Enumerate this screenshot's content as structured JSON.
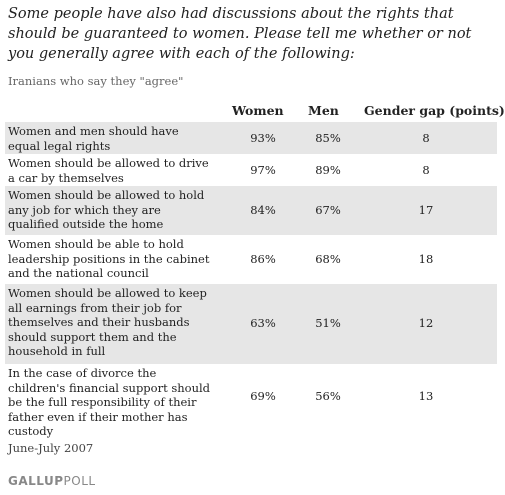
{
  "chart_data": {
    "type": "table",
    "title": "Some people have also had discussions about the rights that should be guaranteed to women. Please tell me whether or not you generally agree with each of the following:",
    "subtitle": "Iranians who say they \"agree\"",
    "columns": [
      "Women",
      "Men",
      "Gender gap (points)"
    ],
    "rows": [
      {
        "label": "Women and men should have equal legal rights",
        "women": "93%",
        "men": "85%",
        "gap": "8"
      },
      {
        "label": "Women should be allowed to drive a car by themselves",
        "women": "97%",
        "men": "89%",
        "gap": "8"
      },
      {
        "label": "Women should be allowed to hold any job for which they are qualified outside the home",
        "women": "84%",
        "men": "67%",
        "gap": "17"
      },
      {
        "label": "Women should be able to hold leadership positions in the cabinet and the national council",
        "women": "86%",
        "men": "68%",
        "gap": "18"
      },
      {
        "label": "Women should be allowed to keep all earnings from their job for themselves and their husbands should support them and the household in full",
        "women": "63%",
        "men": "51%",
        "gap": "12"
      },
      {
        "label": "In the case of divorce the children's financial support should be the full responsibility of their father even if their mother has custody",
        "women": "69%",
        "men": "56%",
        "gap": "13"
      }
    ],
    "footnote": "June-July 2007"
  },
  "logo": {
    "brand": "GALLUP",
    "poll": "POLL"
  }
}
